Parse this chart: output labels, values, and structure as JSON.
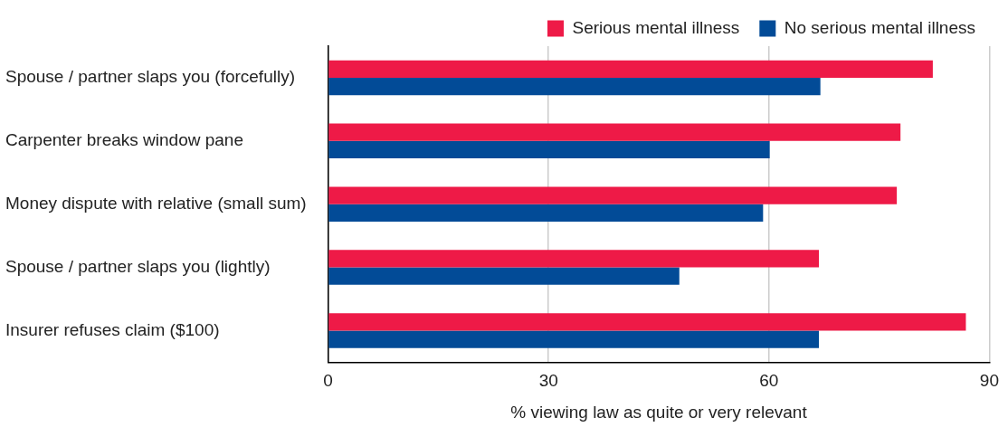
{
  "chart_data": {
    "type": "bar",
    "orientation": "horizontal",
    "xlabel": "% viewing law as quite or very relevant",
    "categories": [
      "Spouse / partner slaps you (forcefully)",
      "Carpenter breaks window pane",
      "Money dispute with relative (small sum)",
      "Spouse / partner slaps you (lightly)",
      "Insurer refuses claim ($100)"
    ],
    "series": [
      {
        "name": "Serious mental illness",
        "color": "#ee1a47",
        "values": [
          82.3,
          77.9,
          77.4,
          66.8,
          86.8
        ]
      },
      {
        "name": "No serious mental illness",
        "color": "#024b97",
        "values": [
          67.0,
          60.1,
          59.2,
          47.8,
          66.8
        ]
      }
    ],
    "xlim": [
      0,
      90
    ],
    "xticks": [
      0,
      30,
      60,
      90
    ],
    "grid": "x",
    "legend": "top right"
  }
}
